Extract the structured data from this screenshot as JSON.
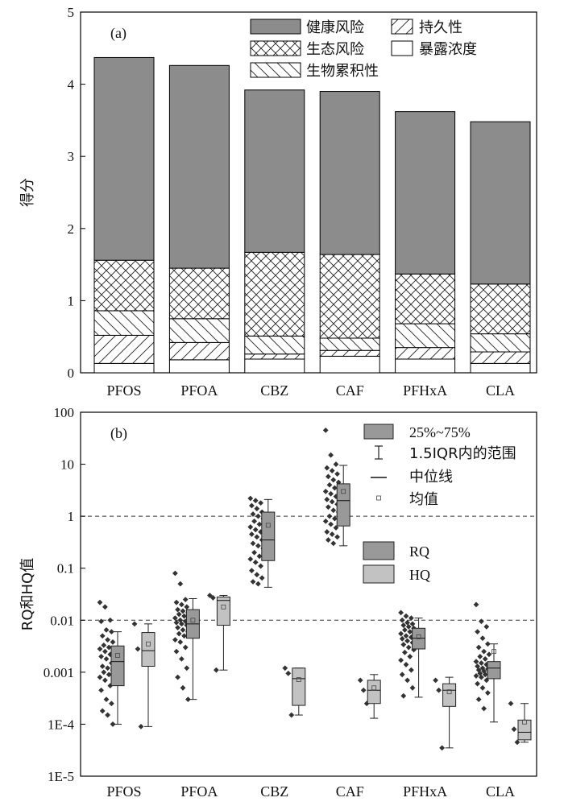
{
  "colors": {
    "health": "#8c8c8c",
    "rq_box": "#999999",
    "hq_box": "#c2c2c2",
    "point": "#333333",
    "axis": "#000000"
  },
  "chart_data": [
    {
      "type": "bar",
      "stacked": true,
      "panel_label": "(a)",
      "ylabel": "得分",
      "ylim": [
        0,
        5
      ],
      "yticks": [
        "0",
        "1",
        "2",
        "3",
        "4",
        "5"
      ],
      "categories": [
        "PFOS",
        "PFOA",
        "CBZ",
        "CAF",
        "PFHxA",
        "CLA"
      ],
      "series": [
        {
          "name": "暴露浓度",
          "pattern": "white",
          "values": [
            0.13,
            0.18,
            0.19,
            0.23,
            0.19,
            0.13
          ]
        },
        {
          "name": "持久性",
          "pattern": "fdiag",
          "values": [
            0.39,
            0.24,
            0.07,
            0.08,
            0.16,
            0.16
          ]
        },
        {
          "name": "生物累积性",
          "pattern": "bdiag",
          "values": [
            0.34,
            0.33,
            0.25,
            0.17,
            0.33,
            0.25
          ]
        },
        {
          "name": "生态风险",
          "pattern": "cross",
          "values": [
            0.7,
            0.7,
            1.16,
            1.16,
            0.69,
            0.69
          ]
        },
        {
          "name": "健康风险",
          "pattern": "gray",
          "values": [
            2.81,
            2.81,
            2.25,
            2.26,
            2.25,
            2.25
          ]
        }
      ],
      "legend": {
        "col1": [
          {
            "label": "健康风险",
            "pattern": "gray"
          },
          {
            "label": "生态风险",
            "pattern": "cross"
          },
          {
            "label": "生物累积性",
            "pattern": "bdiag"
          }
        ],
        "col2": [
          {
            "label": "持久性",
            "pattern": "fdiag"
          },
          {
            "label": "暴露浓度",
            "pattern": "white"
          }
        ],
        "placement": "top-right"
      },
      "grid": false
    },
    {
      "type": "scatter",
      "subtype": "box-with-points",
      "panel_label": "(b)",
      "ylabel": "RQ和HQ值",
      "yscale": "log",
      "ylim": [
        1e-05,
        100
      ],
      "yticks": [
        "1E-5",
        "1E-4",
        "0.001",
        "0.01",
        "0.1",
        "1",
        "10",
        "100"
      ],
      "reference_lines": [
        1,
        0.01
      ],
      "categories": [
        "PFOS",
        "PFOA",
        "CBZ",
        "CAF",
        "PFHxA",
        "CLA"
      ],
      "legend": {
        "stats": [
          {
            "label": "25%~75%",
            "symbol": "box"
          },
          {
            "label": "1.5IQR内的范围",
            "symbol": "whisker"
          },
          {
            "label": "中位线",
            "symbol": "line"
          },
          {
            "label": "均值",
            "symbol": "square"
          }
        ],
        "series": [
          {
            "label": "RQ",
            "symbol": "box-dark"
          },
          {
            "label": "HQ",
            "symbol": "box-light"
          }
        ],
        "placement": "top-right"
      },
      "series": [
        {
          "name": "RQ",
          "boxes": [
            {
              "category": "PFOS",
              "q1": 0.00055,
              "median": 0.0016,
              "q3": 0.0032,
              "wlow": 0.0001,
              "whigh": 0.006,
              "mean": 0.0021,
              "points": [
                0.022,
                0.018,
                0.01,
                0.0095,
                0.0065,
                0.006,
                0.005,
                0.0042,
                0.0038,
                0.0033,
                0.003,
                0.0028,
                0.0025,
                0.0022,
                0.002,
                0.0018,
                0.0015,
                0.0013,
                0.0012,
                0.0011,
                0.001,
                0.0009,
                0.0008,
                0.0007,
                0.00055,
                0.00045,
                0.0003,
                0.00025,
                0.00018,
                0.00015,
                0.0001
              ]
            },
            {
              "category": "PFOA",
              "q1": 0.0045,
              "median": 0.0085,
              "q3": 0.016,
              "wlow": 0.0003,
              "whigh": 0.026,
              "mean": 0.01,
              "points": [
                0.08,
                0.05,
                0.025,
                0.022,
                0.02,
                0.018,
                0.016,
                0.015,
                0.014,
                0.013,
                0.012,
                0.011,
                0.01,
                0.0095,
                0.009,
                0.0085,
                0.008,
                0.0072,
                0.0065,
                0.006,
                0.0055,
                0.005,
                0.0042,
                0.0038,
                0.003,
                0.0025,
                0.0018,
                0.0012,
                0.0008,
                0.0005,
                0.0003
              ]
            },
            {
              "category": "CBZ",
              "q1": 0.14,
              "median": 0.35,
              "q3": 1.2,
              "wlow": 0.043,
              "whigh": 2.1,
              "mean": 0.67,
              "points": [
                2.2,
                2.0,
                1.8,
                1.6,
                1.4,
                1.2,
                1.1,
                1.0,
                0.9,
                0.8,
                0.7,
                0.62,
                0.55,
                0.5,
                0.45,
                0.4,
                0.35,
                0.3,
                0.27,
                0.24,
                0.2,
                0.17,
                0.15,
                0.13,
                0.11,
                0.09,
                0.075,
                0.065,
                0.055,
                0.05
              ]
            },
            {
              "category": "CAF",
              "q1": 0.65,
              "median": 2.0,
              "q3": 4.2,
              "wlow": 0.27,
              "whigh": 9.5,
              "mean": 3.0,
              "points": [
                45,
                15,
                10,
                8.5,
                7.5,
                6.5,
                5.8,
                5.0,
                4.5,
                4.0,
                3.5,
                3.0,
                2.7,
                2.4,
                2.1,
                1.9,
                1.7,
                1.5,
                1.3,
                1.2,
                1.0,
                0.9,
                0.8,
                0.7,
                0.6,
                0.5,
                0.45,
                0.4,
                0.35,
                0.3
              ]
            },
            {
              "category": "PFHxA",
              "q1": 0.0028,
              "median": 0.0045,
              "q3": 0.007,
              "wlow": 0.00033,
              "whigh": 0.011,
              "mean": 0.0048,
              "points": [
                0.014,
                0.012,
                0.011,
                0.01,
                0.009,
                0.0085,
                0.008,
                0.0075,
                0.007,
                0.0065,
                0.006,
                0.0055,
                0.005,
                0.0047,
                0.0044,
                0.004,
                0.0037,
                0.0034,
                0.003,
                0.0027,
                0.0024,
                0.002,
                0.0017,
                0.0014,
                0.0011,
                0.0009,
                0.0007,
                0.0005,
                0.00035
              ]
            },
            {
              "category": "CLA",
              "q1": 0.00075,
              "median": 0.0012,
              "q3": 0.0016,
              "wlow": 0.00011,
              "whigh": 0.0035,
              "mean": 0.0025,
              "points": [
                0.02,
                0.0095,
                0.0075,
                0.006,
                0.0045,
                0.0035,
                0.003,
                0.0025,
                0.0022,
                0.002,
                0.0018,
                0.0016,
                0.0015,
                0.0014,
                0.0013,
                0.0012,
                0.00115,
                0.0011,
                0.00105,
                0.001,
                0.00095,
                0.0009,
                0.00085,
                0.0008,
                0.0007,
                0.0006,
                0.0005,
                0.0004,
                0.0003,
                0.0002
              ]
            }
          ]
        },
        {
          "name": "HQ",
          "boxes": [
            {
              "category": "PFOS",
              "q1": 0.0013,
              "median": 0.0026,
              "q3": 0.0058,
              "wlow": 9e-05,
              "whigh": 0.0085,
              "mean": 0.0035,
              "points": [
                0.0085,
                0.0028,
                9e-05
              ]
            },
            {
              "category": "PFOA",
              "q1": 0.008,
              "median": 0.024,
              "q3": 0.028,
              "wlow": 0.0011,
              "whigh": 0.03,
              "mean": 0.018,
              "points": [
                0.03,
                0.027,
                0.0011
              ]
            },
            {
              "category": "CBZ",
              "q1": 0.00023,
              "median": 0.00075,
              "q3": 0.0012,
              "wlow": 0.00015,
              "whigh": 0.0012,
              "mean": 0.00072,
              "points": [
                0.0012,
                0.00095,
                0.00015
              ]
            },
            {
              "category": "CAF",
              "q1": 0.00025,
              "median": 0.00045,
              "q3": 0.0007,
              "wlow": 0.00013,
              "whigh": 0.0009,
              "mean": 0.0005,
              "points": [
                0.0007,
                0.00045,
                0.00025
              ]
            },
            {
              "category": "PFHxA",
              "q1": 0.00022,
              "median": 0.00045,
              "q3": 0.0006,
              "wlow": 3.5e-05,
              "whigh": 0.0008,
              "mean": 0.00042,
              "points": [
                0.0007,
                0.00045,
                3.5e-05
              ]
            },
            {
              "category": "CLA",
              "q1": 5e-05,
              "median": 7e-05,
              "q3": 0.00012,
              "wlow": 4.5e-05,
              "whigh": 0.00025,
              "mean": 0.00011,
              "points": [
                0.00025,
                8e-05,
                4.5e-05
              ]
            }
          ]
        }
      ],
      "grid": false
    }
  ]
}
